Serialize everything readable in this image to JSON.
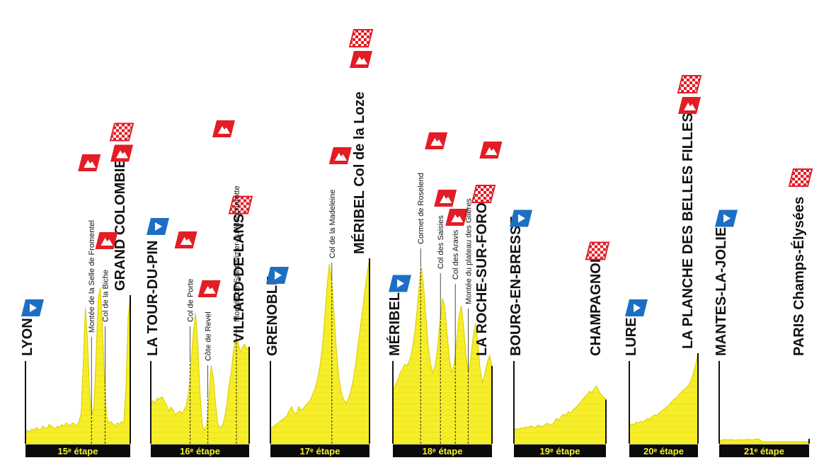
{
  "colors": {
    "profile_fill": "#f6ee2a",
    "profile_line": "#d8cc00",
    "band_line": "#e2d400",
    "bar": "#0a0a0a",
    "bar_text": "#f5ee2a",
    "start_flag": "#1d6fc3",
    "mountain_flag": "#e31d25",
    "finish_flag": "#e31d25"
  },
  "stages": [
    {
      "label": "15ᵉ étape",
      "start": "LYON",
      "finish": "GRAND COLOMBIER",
      "climbs": [
        {
          "name": "Montée de la Selle de Fromentel",
          "rel": 0.63
        },
        {
          "name": "Col de la Biche",
          "rel": 0.76
        }
      ],
      "profile": [
        0.08,
        0.09,
        0.08,
        0.1,
        0.09,
        0.11,
        0.1,
        0.09,
        0.12,
        0.11,
        0.1,
        0.13,
        0.12,
        0.11,
        0.1,
        0.12,
        0.11,
        0.13,
        0.12,
        0.14,
        0.13,
        0.12,
        0.14,
        0.13,
        0.12,
        0.15,
        0.2,
        0.55,
        0.92,
        0.7,
        0.35,
        0.2,
        0.25,
        0.6,
        0.98,
        1.05,
        0.8,
        0.4,
        0.18,
        0.14,
        0.15,
        0.13,
        0.12,
        0.14,
        0.13,
        0.15,
        0.14,
        0.4,
        0.85,
        1.0
      ]
    },
    {
      "label": "16ᵉ étape",
      "start": "LA TOUR-DU-PIN",
      "finish": "VILLARD-DE-LANS",
      "climbs": [
        {
          "name": "Col de Porte",
          "rel": 0.4
        },
        {
          "name": "Côte de Revel",
          "rel": 0.58
        },
        {
          "name": "Montée de Saint-Nizier-du-Moucherotte",
          "rel": 0.87
        }
      ],
      "profile": [
        0.3,
        0.33,
        0.31,
        0.35,
        0.34,
        0.36,
        0.33,
        0.3,
        0.25,
        0.28,
        0.26,
        0.22,
        0.24,
        0.25,
        0.23,
        0.26,
        0.3,
        0.4,
        0.62,
        0.85,
        1.0,
        0.78,
        0.4,
        0.15,
        0.1,
        0.14,
        0.35,
        0.6,
        0.5,
        0.3,
        0.15,
        0.12,
        0.14,
        0.2,
        0.3,
        0.45,
        0.55,
        0.72,
        0.8,
        0.78,
        0.7,
        0.74,
        0.76,
        0.72,
        0.74
      ]
    },
    {
      "label": "17ᵉ étape",
      "start": "GRENOBLE",
      "finish": "MÉRIBEL Col de la Loze",
      "climbs": [
        {
          "name": "Col de la Madeleine",
          "rel": 0.62
        },
        {
          "name": "MÉRIBEL Col de la Loze",
          "rel": 0.99
        }
      ],
      "profile": [
        0.08,
        0.09,
        0.1,
        0.11,
        0.12,
        0.13,
        0.14,
        0.15,
        0.18,
        0.2,
        0.17,
        0.16,
        0.2,
        0.18,
        0.19,
        0.21,
        0.22,
        0.24,
        0.27,
        0.3,
        0.35,
        0.42,
        0.52,
        0.68,
        0.85,
        0.97,
        0.88,
        0.7,
        0.5,
        0.36,
        0.28,
        0.24,
        0.22,
        0.24,
        0.28,
        0.34,
        0.42,
        0.52,
        0.62,
        0.72,
        0.82,
        0.92,
        1.0
      ]
    },
    {
      "label": "18ᵉ étape",
      "start": "MÉRIBEL",
      "finish": "LA ROCHE-SUR-FORON",
      "climbs": [
        {
          "name": "Cormet de Roselend",
          "rel": 0.28
        },
        {
          "name": "Col des Saisies",
          "rel": 0.48
        },
        {
          "name": "Col des Aravis",
          "rel": 0.63
        },
        {
          "name": "Montée du plateau des Glières",
          "rel": 0.76
        }
      ],
      "profile": [
        0.3,
        0.33,
        0.36,
        0.4,
        0.42,
        0.45,
        0.44,
        0.47,
        0.52,
        0.6,
        0.72,
        0.88,
        1.0,
        0.9,
        0.72,
        0.55,
        0.45,
        0.4,
        0.45,
        0.55,
        0.7,
        0.82,
        0.78,
        0.62,
        0.48,
        0.4,
        0.45,
        0.58,
        0.72,
        0.78,
        0.66,
        0.5,
        0.4,
        0.48,
        0.6,
        0.68,
        0.58,
        0.42,
        0.34,
        0.4,
        0.46,
        0.5,
        0.44
      ]
    },
    {
      "label": "19ᵉ étape",
      "start": "BOURG-EN-BRESSE",
      "finish": "CHAMPAGNOLE",
      "climbs": [],
      "profile": [
        0.15,
        0.18,
        0.17,
        0.19,
        0.18,
        0.2,
        0.19,
        0.21,
        0.2,
        0.19,
        0.22,
        0.21,
        0.2,
        0.22,
        0.24,
        0.23,
        0.22,
        0.25,
        0.3,
        0.28,
        0.32,
        0.35,
        0.33,
        0.38,
        0.36,
        0.4,
        0.42,
        0.45,
        0.48,
        0.52,
        0.55,
        0.58,
        0.62,
        0.6,
        0.65,
        0.68,
        0.62,
        0.58,
        0.55,
        0.52
      ]
    },
    {
      "label": "20ᵉ étape",
      "start": "LURE",
      "finish": "LA PLANCHE DES BELLES FILLES",
      "climbs": [],
      "profile": [
        0.2,
        0.22,
        0.21,
        0.24,
        0.23,
        0.25,
        0.24,
        0.26,
        0.28,
        0.27,
        0.3,
        0.32,
        0.31,
        0.34,
        0.36,
        0.38,
        0.4,
        0.42,
        0.45,
        0.48,
        0.5,
        0.52,
        0.55,
        0.58,
        0.6,
        0.62,
        0.65,
        0.7,
        0.78,
        0.88,
        1.0
      ]
    },
    {
      "label": "21ᵉ étape",
      "start": "MANTES-LA-JOLIE",
      "finish": "PARIS Champs-Élysées",
      "climbs": [],
      "profile": [
        0.1,
        0.12,
        0.14,
        0.12,
        0.13,
        0.11,
        0.12,
        0.13,
        0.12,
        0.14,
        0.13,
        0.12,
        0.16,
        0.14,
        0.06,
        0.06,
        0.07,
        0.06,
        0.06,
        0.07,
        0.06,
        0.06,
        0.07,
        0.06,
        0.06,
        0.07,
        0.06,
        0.06,
        0.07,
        0.06
      ]
    }
  ]
}
